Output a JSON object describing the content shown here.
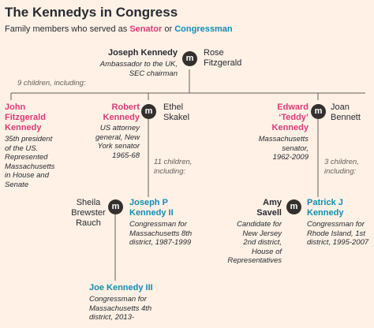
{
  "title": "The Kennedys in Congress",
  "subtitle": {
    "prefix": "Family members who served as ",
    "senator": "Senator",
    "or": " or ",
    "congressman": "Congressman"
  },
  "colors": {
    "senator": "#d93c78",
    "congressman": "#0f8db3",
    "background": "#fff1e5"
  },
  "marriage_label": "m",
  "joseph": {
    "name": "Joseph Kennedy",
    "desc": [
      "Ambassador to the UK,",
      "SEC chairman"
    ],
    "spouse": [
      "Rose",
      "Fitzgerald"
    ],
    "children_note": "9 children, including:"
  },
  "john": {
    "name": [
      "John",
      "Fitzgerald",
      "Kennedy"
    ],
    "desc": [
      "35th president",
      "of the US.",
      "Represented",
      "Massachusetts",
      "in House and",
      "Senate"
    ]
  },
  "robert": {
    "name": [
      "Robert",
      "Kennedy"
    ],
    "desc": [
      "US attorney",
      "general, New",
      "York senator",
      "1965-68"
    ],
    "spouse": [
      "Ethel",
      "Skakel"
    ],
    "children_note": [
      "11 children,",
      "including:"
    ]
  },
  "edward": {
    "name": [
      "Edward",
      "‘Teddy’",
      "Kennedy"
    ],
    "desc": [
      "Massachusetts",
      "senator,",
      "1962-2009"
    ],
    "spouse": [
      "Joan",
      "Bennett"
    ],
    "children_note": [
      "3 children,",
      "including:"
    ]
  },
  "josephp": {
    "spouse": [
      "Sheila",
      "Brewster",
      "Rauch"
    ],
    "name": [
      "Joseph P",
      "Kennedy II"
    ],
    "desc": [
      "Congressman for",
      "Massachusetts 8th",
      "district, 1987-1999"
    ]
  },
  "patrick": {
    "spouse": [
      "Amy",
      "Savell"
    ],
    "spouse_desc": [
      "Candidate for",
      "New Jersey",
      "2nd district,",
      "House of",
      "Representatives"
    ],
    "name": [
      "Patrick J",
      "Kennedy"
    ],
    "desc": [
      "Congressman for",
      "Rhode Island, 1st",
      "district, 1995-2007"
    ]
  },
  "joe3": {
    "name": "Joe Kennedy III",
    "desc": [
      "Congressman for",
      "Massachusetts 4th",
      "district, 2013-"
    ]
  }
}
